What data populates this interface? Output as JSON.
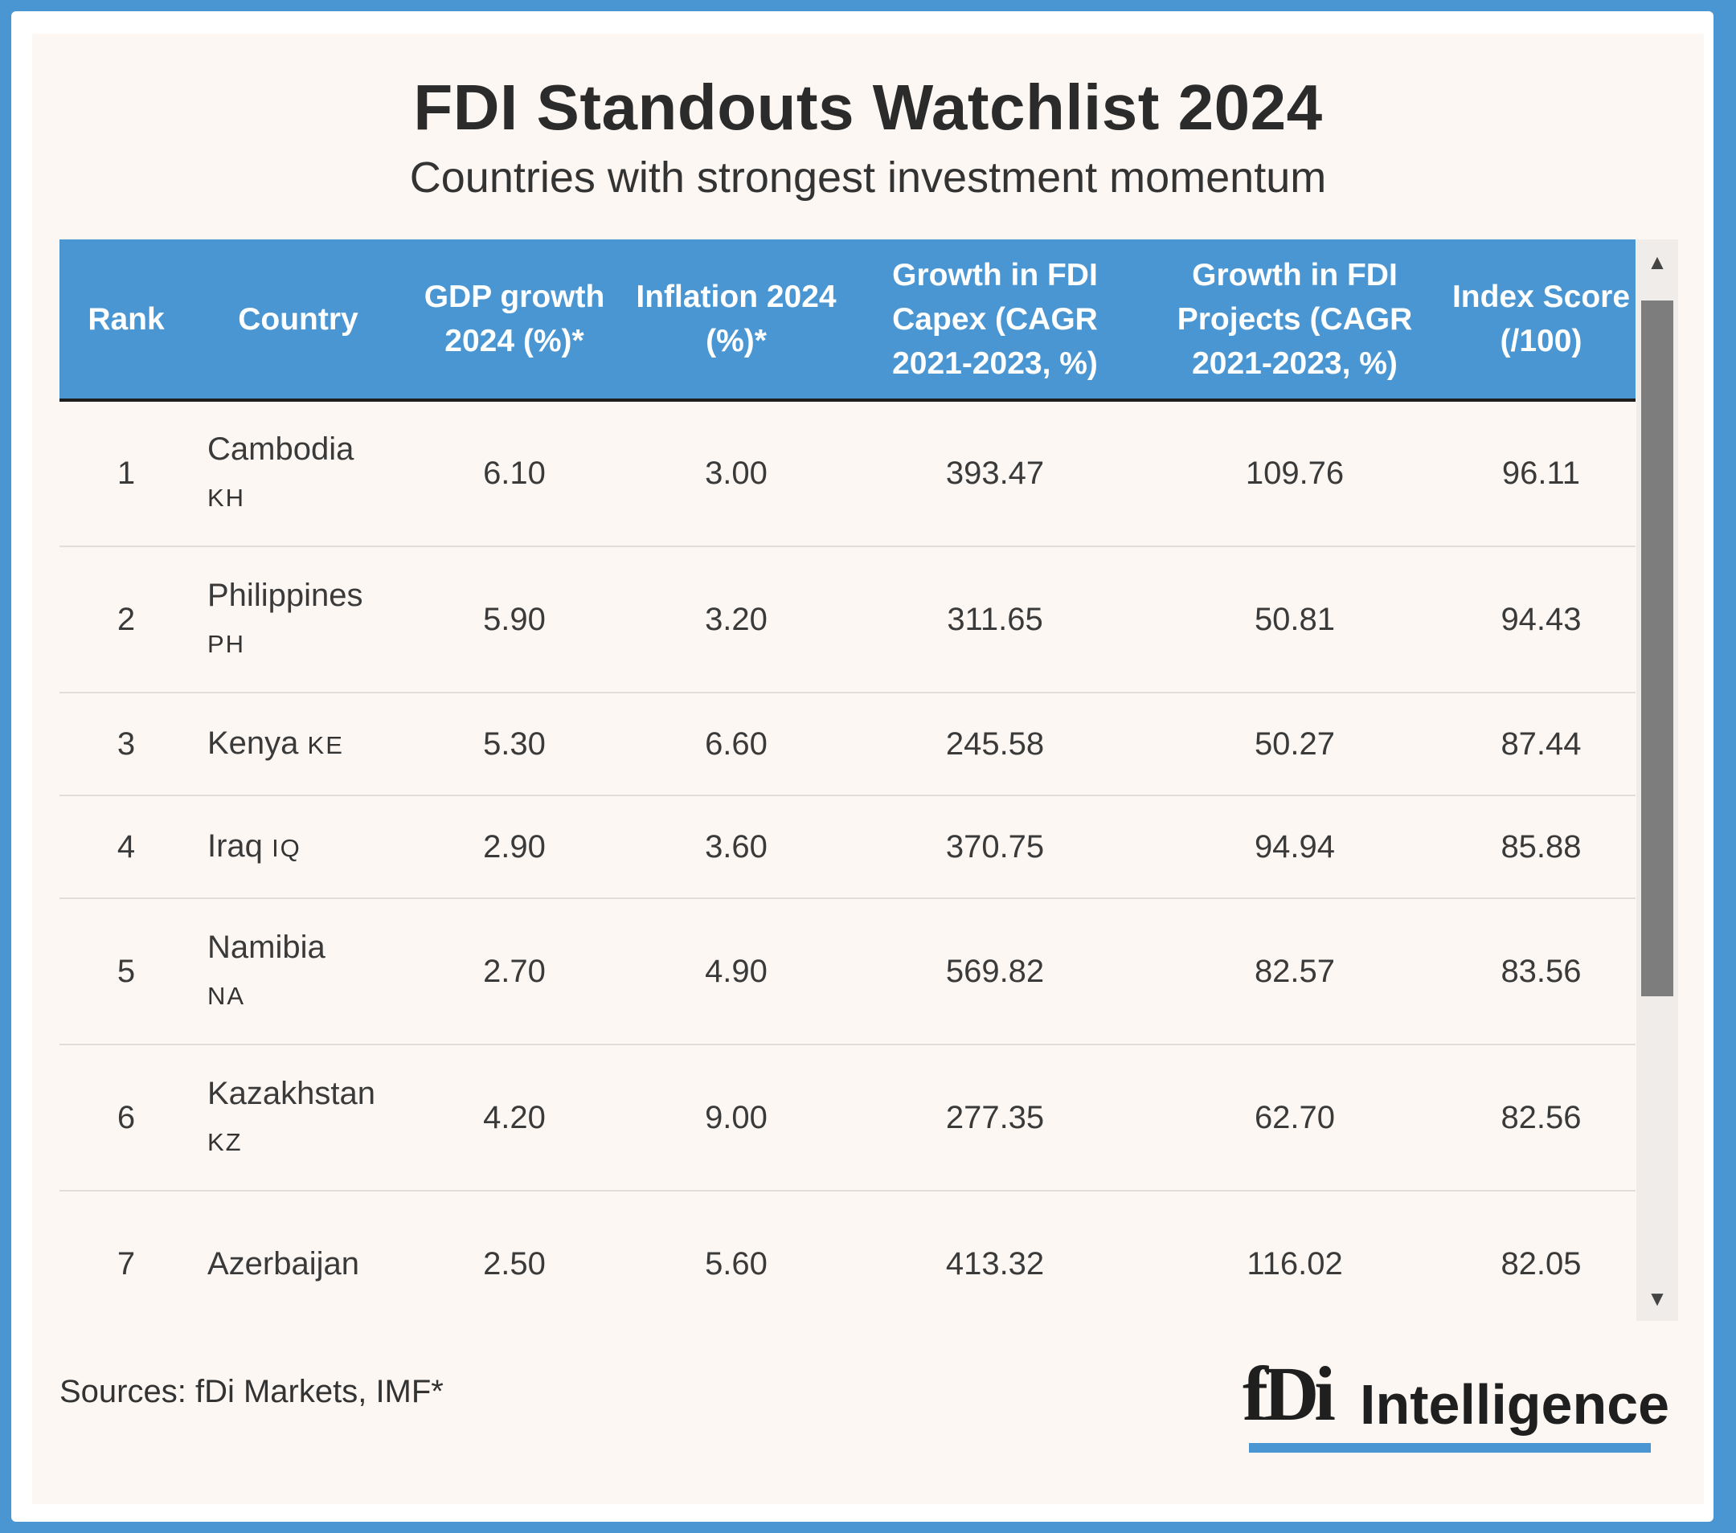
{
  "chart_data": {
    "type": "table",
    "title": "FDI Standouts Watchlist 2024",
    "subtitle": "Countries with strongest investment momentum",
    "columns": [
      "Rank",
      "Country",
      "GDP growth 2024 (%)*",
      "Inflation 2024 (%)*",
      "Growth in FDI Capex (CAGR 2021-2023, %)",
      "Growth in FDI Projects (CAGR 2021-2023, %)",
      "Index Score (/100)"
    ],
    "rows": [
      {
        "rank": "1",
        "country": "Cambodia",
        "code": "KH",
        "gdp": "6.10",
        "inflation": "3.00",
        "capex": "393.47",
        "projects": "109.76",
        "index": "96.11"
      },
      {
        "rank": "2",
        "country": "Philippines",
        "code": "PH",
        "gdp": "5.90",
        "inflation": "3.20",
        "capex": "311.65",
        "projects": "50.81",
        "index": "94.43"
      },
      {
        "rank": "3",
        "country": "Kenya",
        "code": "KE",
        "gdp": "5.30",
        "inflation": "6.60",
        "capex": "245.58",
        "projects": "50.27",
        "index": "87.44"
      },
      {
        "rank": "4",
        "country": "Iraq",
        "code": "IQ",
        "gdp": "2.90",
        "inflation": "3.60",
        "capex": "370.75",
        "projects": "94.94",
        "index": "85.88"
      },
      {
        "rank": "5",
        "country": "Namibia",
        "code": "NA",
        "gdp": "2.70",
        "inflation": "4.90",
        "capex": "569.82",
        "projects": "82.57",
        "index": "83.56"
      },
      {
        "rank": "6",
        "country": "Kazakhstan",
        "code": "KZ",
        "gdp": "4.20",
        "inflation": "9.00",
        "capex": "277.35",
        "projects": "62.70",
        "index": "82.56"
      },
      {
        "rank": "7",
        "country": "Azerbaijan",
        "code": "",
        "gdp": "2.50",
        "inflation": "5.60",
        "capex": "413.32",
        "projects": "116.02",
        "index": "82.05"
      }
    ],
    "source": "Sources: fDi Markets, IMF*"
  },
  "headers": {
    "rank": "Rank",
    "country": "Country",
    "gdp": "GDP growth 2024 (%)*",
    "inflation": "Inflation 2024 (%)*",
    "capex": "Growth in FDI Capex (CAGR 2021-2023, %)",
    "projects": "Growth in FDI Projects (CAGR 2021-2023, %)",
    "index": "Index Score (/100)"
  },
  "scrollbar": {
    "up_icon": "▲",
    "down_icon": "▼"
  },
  "logo": {
    "mark": "fDi",
    "text": "Intelligence"
  },
  "colors": {
    "accent": "#4a96d2",
    "background": "#fcf7f3",
    "header_text": "#ffffff",
    "scroll_thumb": "#7d7d7d"
  }
}
